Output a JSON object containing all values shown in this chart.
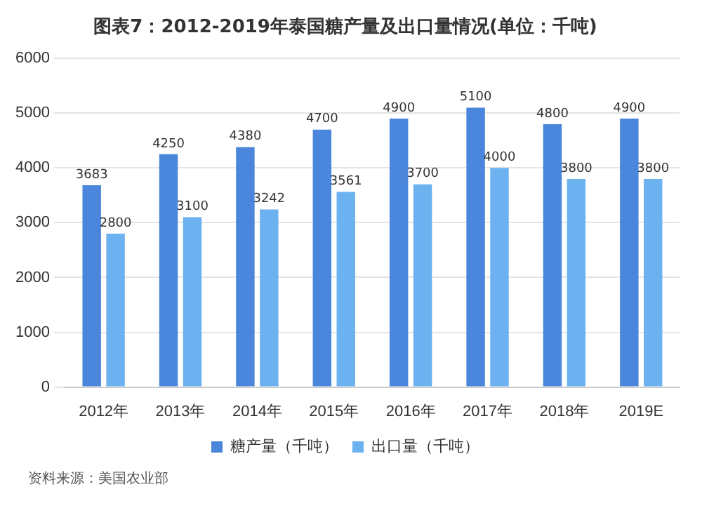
{
  "chart_data": {
    "type": "bar",
    "title": "图表7：2012-2019年泰国糖产量及出口量情况(单位：千吨)",
    "categories": [
      "2012年",
      "2013年",
      "2014年",
      "2015年",
      "2016年",
      "2017年",
      "2018年",
      "2019E"
    ],
    "series": [
      {
        "name": "糖产量（千吨）",
        "color": "#4a86dc",
        "values": [
          3683,
          4250,
          4380,
          4700,
          4900,
          5100,
          4800,
          4900
        ]
      },
      {
        "name": "出口量（千吨）",
        "color": "#6cb2f0",
        "values": [
          2800,
          3100,
          3242,
          3561,
          3700,
          4000,
          3800,
          3800
        ]
      }
    ],
    "ylim": [
      0,
      6000
    ],
    "yticks": [
      0,
      1000,
      2000,
      3000,
      4000,
      5000,
      6000
    ],
    "grid": "y",
    "legend": "bottom",
    "data_labels": true,
    "annotations": [
      "资料来源：美国农业部"
    ]
  }
}
